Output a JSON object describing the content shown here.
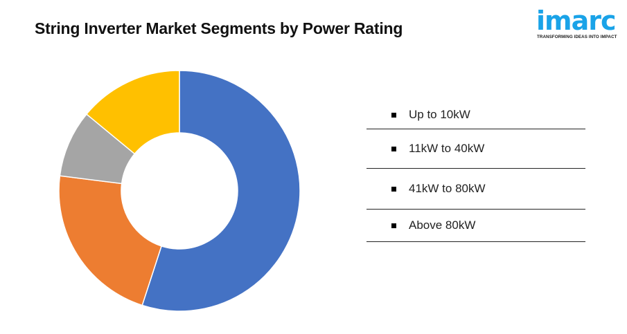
{
  "header": {
    "title": "String Inverter Market Segments by Power Rating"
  },
  "logo": {
    "wordmark": "imarc",
    "tagline": "TRANSFORMING IDEAS INTO IMPACT",
    "color": "#1aa3e8"
  },
  "chart_data": {
    "type": "pie",
    "subtype": "donut",
    "categories": [
      "Up to 10kW",
      "11kW to 40kW",
      "41kW to 80kW",
      "Above 80kW"
    ],
    "values": [
      55,
      22,
      9,
      14
    ],
    "colors": [
      "#4472C4",
      "#ED7D31",
      "#A5A5A5",
      "#FFC000"
    ],
    "legend_position": "right"
  }
}
